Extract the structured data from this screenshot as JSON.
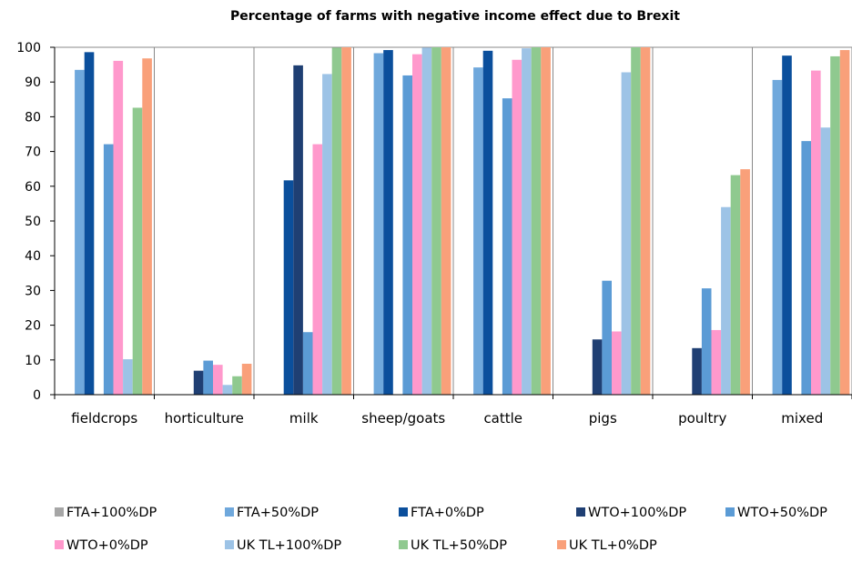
{
  "chart_data": {
    "type": "bar",
    "title": "Percentage of farms with negative income effect due to Brexit",
    "xlabel": "",
    "ylabel": "",
    "ylim": [
      0,
      100
    ],
    "yticks": [
      0,
      10,
      20,
      30,
      40,
      50,
      60,
      70,
      80,
      90,
      100
    ],
    "grid": "vertical separators between categories",
    "legend_position": "bottom",
    "categories": [
      "fieldcrops",
      "horticulture",
      "milk",
      "sheep/goats",
      "cattle",
      "pigs",
      "poultry",
      "mixed"
    ],
    "series": [
      {
        "name": "FTA+100%DP",
        "color": "#a6a6a6",
        "values": [
          0,
          0,
          0,
          0,
          0,
          0,
          0,
          0
        ]
      },
      {
        "name": "FTA+50%DP",
        "color": "#6fa8dc",
        "values": [
          93.5,
          0,
          0,
          98.3,
          94.2,
          0,
          0,
          90.6
        ]
      },
      {
        "name": "FTA+0%DP",
        "color": "#0b4f9c",
        "values": [
          98.6,
          0,
          61.7,
          99.2,
          99.0,
          0,
          0,
          97.6
        ]
      },
      {
        "name": "WTO+100%DP",
        "color": "#1f3f73",
        "values": [
          0,
          6.9,
          94.8,
          0,
          0,
          15.9,
          13.4,
          0
        ]
      },
      {
        "name": "WTO+50%DP",
        "color": "#5b9bd5",
        "values": [
          72.1,
          9.8,
          18.0,
          91.9,
          85.3,
          32.8,
          30.6,
          73.0
        ]
      },
      {
        "name": "WTO+0%DP",
        "color": "#ff99cc",
        "values": [
          96.1,
          8.6,
          72.1,
          98.0,
          96.4,
          18.2,
          18.6,
          93.3
        ]
      },
      {
        "name": "UK TL+100%DP",
        "color": "#9dc3e6",
        "values": [
          10.2,
          2.8,
          92.3,
          99.9,
          99.7,
          92.8,
          54.0,
          76.9
        ]
      },
      {
        "name": "UK TL+50%DP",
        "color": "#8fc98f",
        "values": [
          82.6,
          5.3,
          99.9,
          100,
          100,
          100,
          63.2,
          97.4
        ]
      },
      {
        "name": "UK TL+0%DP",
        "color": "#f9a07a",
        "values": [
          96.8,
          8.9,
          100,
          100,
          100,
          100,
          64.9,
          99.2
        ]
      }
    ],
    "legend": [
      [
        "FTA+100%DP",
        "FTA+50%DP",
        "FTA+0%DP",
        "WTO+100%DP",
        "WTO+50%DP"
      ],
      [
        "WTO+0%DP",
        "UK TL+100%DP",
        "UK TL+50%DP",
        "UK TL+0%DP"
      ]
    ]
  }
}
